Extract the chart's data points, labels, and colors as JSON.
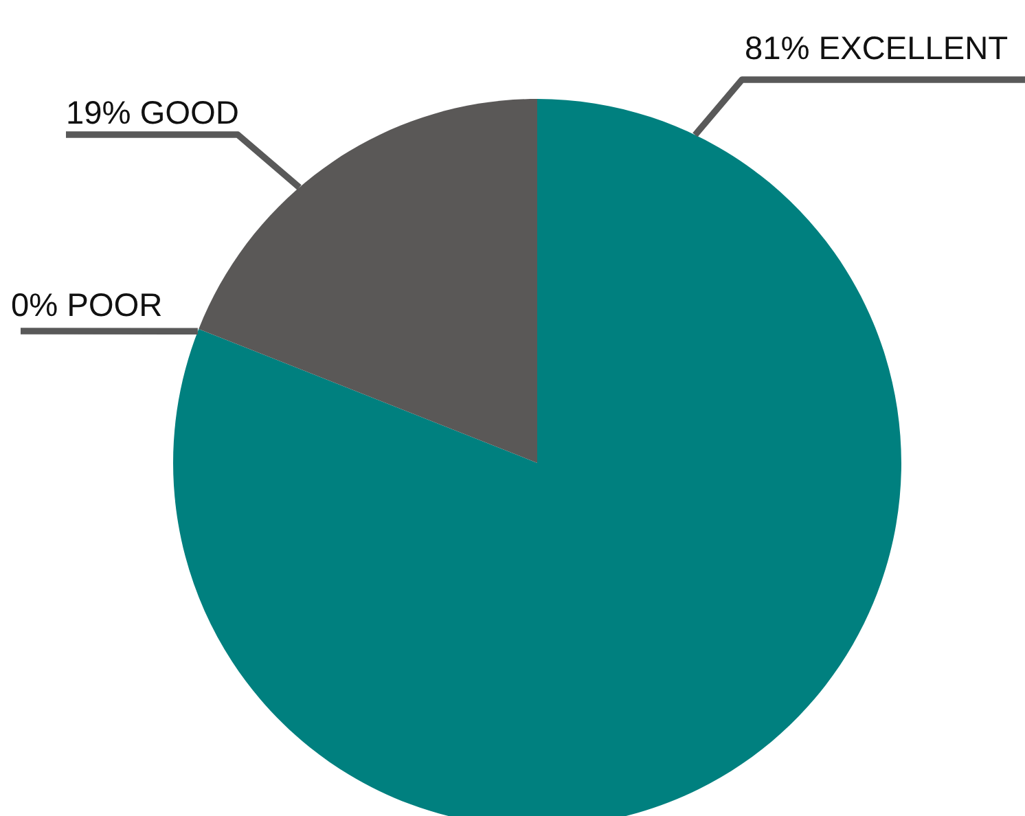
{
  "chart_data": {
    "type": "pie",
    "categories": [
      "EXCELLENT",
      "POOR",
      "GOOD"
    ],
    "values": [
      81,
      0,
      19
    ],
    "colors": [
      "#00807f",
      null,
      "#5a5857"
    ],
    "value_labels": [
      "81%",
      "0%",
      "19%"
    ]
  }
}
